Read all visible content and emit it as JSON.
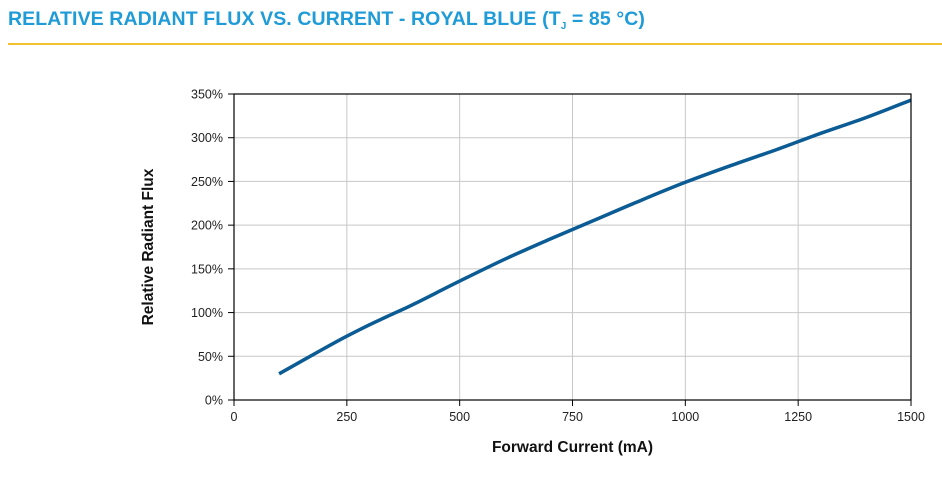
{
  "header": {
    "title_prefix": "RELATIVE RADIANT FLUX VS. CURRENT - ROYAL BLUE (T",
    "title_sub": "J",
    "title_suffix": " = 85 °C)",
    "title_color": "#1f9bd7",
    "rule_color": "#f2c12e"
  },
  "chart_data": {
    "type": "line",
    "title": "",
    "xlabel": "Forward Current (mA)",
    "ylabel": "Relative Radiant Flux",
    "xlim": [
      0,
      1500
    ],
    "ylim": [
      0,
      350
    ],
    "x_ticks": [
      0,
      250,
      500,
      750,
      1000,
      1250,
      1500
    ],
    "x_tick_labels": [
      "0",
      "250",
      "500",
      "750",
      "1000",
      "1250",
      "1500"
    ],
    "y_ticks": [
      0,
      50,
      100,
      150,
      200,
      250,
      300,
      350
    ],
    "y_tick_labels": [
      "0%",
      "50%",
      "100%",
      "150%",
      "200%",
      "250%",
      "300%",
      "350%"
    ],
    "grid": true,
    "series": [
      {
        "color": "#0b5b94",
        "x": [
          100,
          200,
          250,
          300,
          350,
          400,
          500,
          600,
          700,
          800,
          900,
          1000,
          1100,
          1200,
          1300,
          1400,
          1500
        ],
        "y": [
          30,
          59,
          73,
          86,
          98,
          110,
          136,
          161,
          184,
          206,
          228,
          249,
          268,
          286,
          305,
          323,
          343
        ]
      }
    ]
  }
}
